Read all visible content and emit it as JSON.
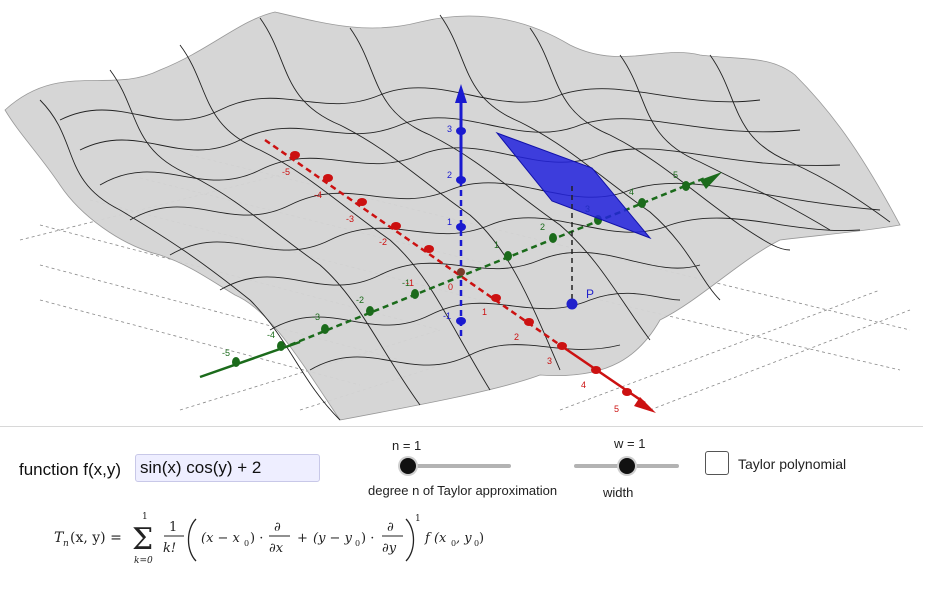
{
  "function_row": {
    "label": "function f(x,y)",
    "value": "sin(x) cos(y) + 2"
  },
  "slider_n": {
    "value_label": "n = 1",
    "caption": "degree n of Taylor approximation",
    "value": 1,
    "fraction": 0.05
  },
  "slider_w": {
    "value_label": "w = 1",
    "caption": "width",
    "value": 1,
    "fraction": 0.5
  },
  "taylor_checkbox": {
    "label": "Taylor polynomial",
    "checked": false
  },
  "formula": {
    "lhs": "T",
    "lhs_sub": "n",
    "lhs_args": "(x, y) =",
    "sum_upper": "1",
    "sum_lower": "k=0",
    "frac_num": "1",
    "frac_den": "k!",
    "term_x": "(x − x",
    "term_x_sub": "0",
    "term_x_end": ") ·",
    "partial": "∂",
    "partial_x": "∂x",
    "plus": "+",
    "term_y": "(y − y",
    "term_y_sub": "0",
    "term_y_end": ") ·",
    "partial_y": "∂y",
    "power": "1",
    "f_part": "f (x",
    "f_sub1": "0",
    "f_mid": ", y",
    "f_sub2": "0",
    "f_end": ")"
  },
  "graphics": {
    "point_label": "P",
    "x_axis_ticks": [
      "-5",
      "-4",
      "-3",
      "-2",
      "-1",
      "0",
      "1",
      "2",
      "3",
      "4",
      "5"
    ],
    "y_axis_ticks": [
      "-5",
      "-4",
      "-3",
      "-2",
      "-1",
      "1",
      "2",
      "3",
      "4",
      "5"
    ],
    "z_axis_ticks": [
      "-1",
      "1",
      "2",
      "3"
    ],
    "colors": {
      "x_axis": "#cc1111",
      "y_axis": "#1b6b1b",
      "z_axis": "#1a1ad0",
      "tangent_plane": "#2222dd",
      "surface": "#d4d4d4"
    }
  }
}
